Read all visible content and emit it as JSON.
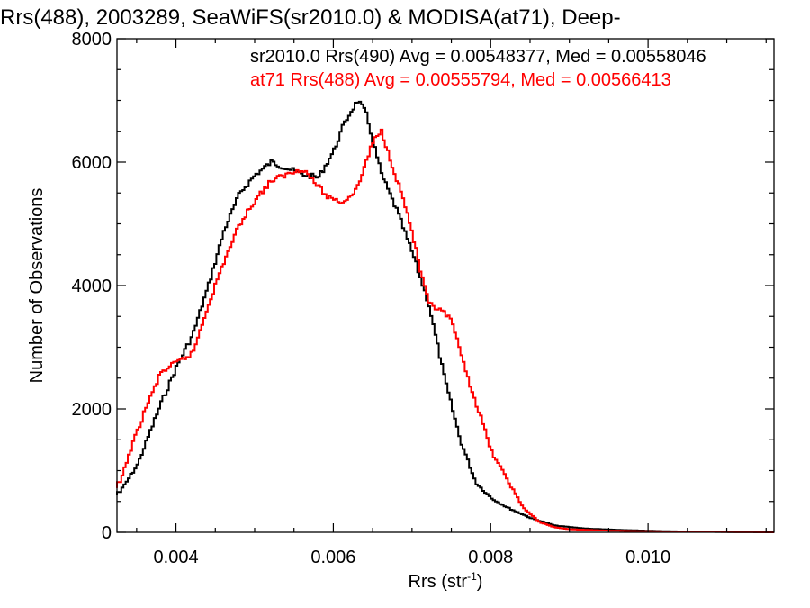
{
  "chart_data": {
    "type": "line",
    "title": "Rrs(488), 2003289, SeaWiFS(sr2010.0) & MODISA(at71), Deep-",
    "xlabel": "Rrs (str",
    "xlabel_sup": "-1",
    "xlabel_close": ")",
    "ylabel": "Number of Observations",
    "xlim": [
      0.00325,
      0.0116
    ],
    "ylim": [
      0,
      8000
    ],
    "xticks": [
      {
        "value": 0.004,
        "label": "0.004"
      },
      {
        "value": 0.006,
        "label": "0.006"
      },
      {
        "value": 0.008,
        "label": "0.008"
      },
      {
        "value": 0.01,
        "label": "0.010"
      }
    ],
    "yticks": [
      {
        "value": 0,
        "label": "0"
      },
      {
        "value": 2000,
        "label": "2000"
      },
      {
        "value": 4000,
        "label": "4000"
      },
      {
        "value": 6000,
        "label": "6000"
      },
      {
        "value": 8000,
        "label": "8000"
      }
    ],
    "grid": false,
    "legend_placement": "top-right",
    "series": [
      {
        "name": "sr2010.0 Rrs(490)",
        "label": "sr2010.0 Rrs(490) Avg = 0.00548377, Med = 0.00558046",
        "color": "#000000",
        "x": [
          0.00325,
          0.0035,
          0.0038,
          0.004,
          0.0042,
          0.0044,
          0.0046,
          0.0048,
          0.005,
          0.0052,
          0.0054,
          0.0056,
          0.0058,
          0.006,
          0.0061,
          0.0062,
          0.0063,
          0.0064,
          0.0065,
          0.0066,
          0.0068,
          0.007,
          0.0072,
          0.0074,
          0.0076,
          0.0078,
          0.008,
          0.0082,
          0.0085,
          0.0088,
          0.0092,
          0.0096,
          0.01,
          0.0105,
          0.011,
          0.0116
        ],
        "y": [
          600,
          1100,
          2100,
          2700,
          3200,
          4000,
          4900,
          5500,
          5800,
          6000,
          5900,
          5800,
          5750,
          6200,
          6550,
          6800,
          7000,
          6800,
          6300,
          5800,
          5200,
          4500,
          3700,
          2500,
          1500,
          800,
          550,
          400,
          230,
          110,
          60,
          40,
          25,
          10,
          5,
          0
        ]
      },
      {
        "name": "at71 Rrs(488)",
        "label": "at71 Rrs(488) Avg = 0.00555794, Med = 0.00566413",
        "color": "#ff0000",
        "x": [
          0.00325,
          0.0034,
          0.0036,
          0.0038,
          0.004,
          0.0042,
          0.0044,
          0.0046,
          0.0048,
          0.005,
          0.0052,
          0.0054,
          0.0056,
          0.0058,
          0.0059,
          0.006,
          0.0061,
          0.0062,
          0.0063,
          0.0064,
          0.0065,
          0.0066,
          0.0067,
          0.0068,
          0.0069,
          0.007,
          0.0071,
          0.0072,
          0.0074,
          0.0075,
          0.0076,
          0.0077,
          0.0078,
          0.008,
          0.0082,
          0.0084,
          0.0086,
          0.0088,
          0.009,
          0.0094,
          0.0098,
          0.0102,
          0.0108,
          0.0116
        ],
        "y": [
          700,
          1300,
          2000,
          2600,
          2750,
          2900,
          3700,
          4400,
          5000,
          5400,
          5700,
          5800,
          5900,
          5600,
          5450,
          5400,
          5350,
          5450,
          5600,
          6000,
          6350,
          6500,
          6100,
          5700,
          5300,
          4800,
          4200,
          3700,
          3550,
          3400,
          2900,
          2500,
          2100,
          1300,
          850,
          400,
          170,
          80,
          50,
          30,
          20,
          15,
          8,
          0
        ]
      }
    ]
  }
}
